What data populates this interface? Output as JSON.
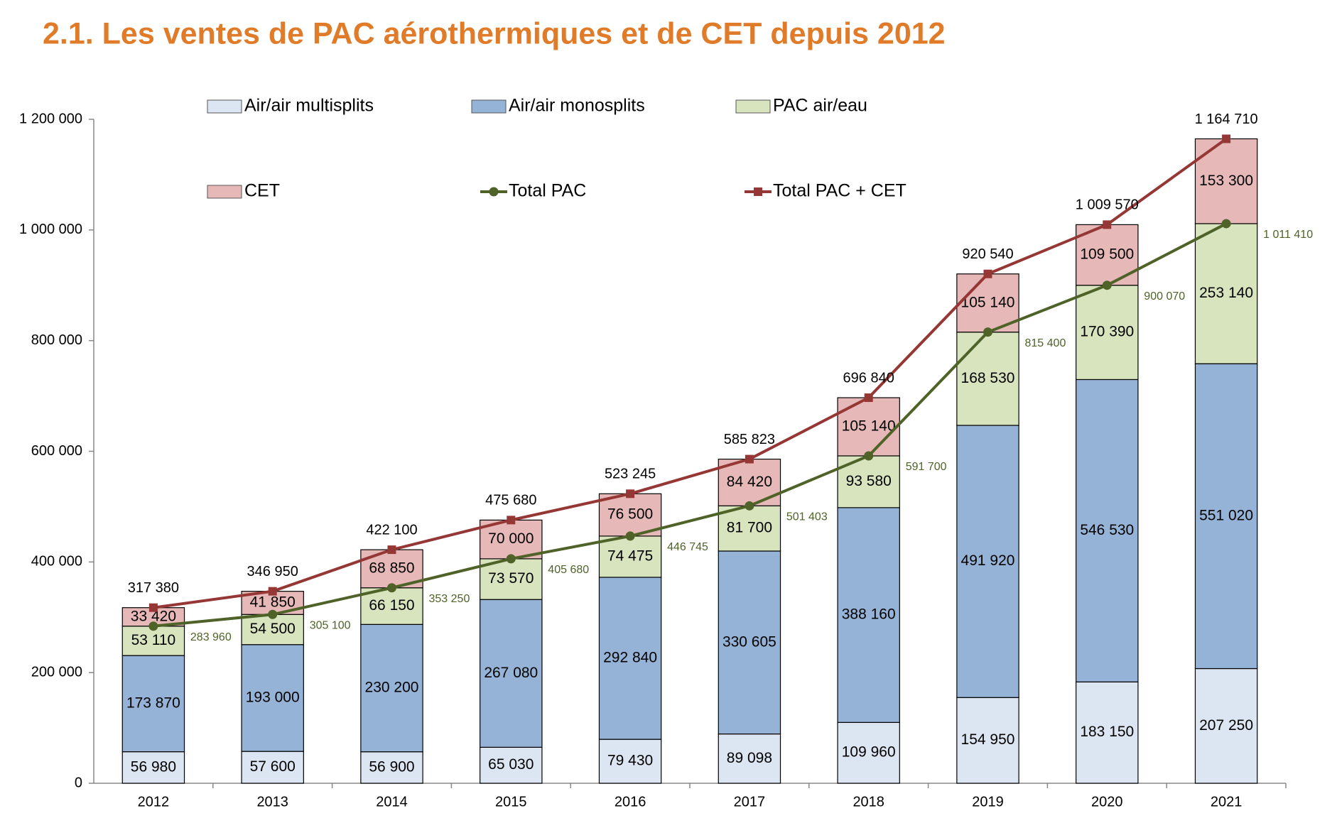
{
  "chart_data": {
    "type": "bar",
    "stacked": true,
    "title": "2.1. Les ventes de PAC aérothermiques et de CET depuis 2012",
    "categories": [
      "2012",
      "2013",
      "2014",
      "2015",
      "2016",
      "2017",
      "2018",
      "2019",
      "2020",
      "2021"
    ],
    "ylim": [
      0,
      1200000
    ],
    "yticks": [
      0,
      {
        "value": 200000,
        "label": "200 000"
      },
      {
        "value": 400000,
        "label": "400 000"
      },
      {
        "value": 600000,
        "label": "600 000"
      },
      {
        "value": 800000,
        "label": "800 000"
      },
      {
        "value": 1000000,
        "label": "1 000 000"
      },
      {
        "value": 1200000,
        "label": "1 200 000"
      }
    ],
    "grid": false,
    "series": [
      {
        "name": "Air/air multisplits",
        "type": "bar",
        "color": "#dce6f2",
        "values": [
          56980,
          57600,
          56900,
          65030,
          79430,
          89098,
          109960,
          154950,
          183150,
          207250
        ],
        "value_labels": [
          "56 980",
          "57 600",
          "56 900",
          "65 030",
          "79 430",
          "89 098",
          "109 960",
          "154 950",
          "183 150",
          "207 250"
        ]
      },
      {
        "name": "Air/air monosplits",
        "type": "bar",
        "color": "#95b3d7",
        "values": [
          173870,
          193000,
          230200,
          267080,
          292840,
          330605,
          388160,
          491920,
          546530,
          551020
        ],
        "value_labels": [
          "173 870",
          "193 000",
          "230 200",
          "267 080",
          "292 840",
          "330 605",
          "388 160",
          "491 920",
          "546 530",
          "551 020"
        ]
      },
      {
        "name": "PAC air/eau",
        "type": "bar",
        "color": "#d7e4bd",
        "values": [
          53110,
          54500,
          66150,
          73570,
          74475,
          81700,
          93580,
          168530,
          170390,
          253140
        ],
        "value_labels": [
          "53 110",
          "54 500",
          "66 150",
          "73 570",
          "74 475",
          "81 700",
          "93 580",
          "168 530",
          "170 390",
          "253 140"
        ]
      },
      {
        "name": "CET",
        "type": "bar",
        "color": "#e6b9b8",
        "values": [
          33420,
          41850,
          68850,
          70000,
          76500,
          84420,
          105140,
          105140,
          109500,
          153300
        ],
        "value_labels": [
          "33 420",
          "41 850",
          "68 850",
          "70 000",
          "76 500",
          "84 420",
          "105 140",
          "105 140",
          "109 500",
          "153 300"
        ]
      },
      {
        "name": "Total PAC",
        "type": "line",
        "marker": "circle",
        "color": "#4f6228",
        "values": [
          283960,
          305100,
          353250,
          405680,
          446745,
          501403,
          591700,
          815400,
          900070,
          1011410
        ],
        "value_labels": [
          "283 960",
          "305 100",
          "353 250",
          "405 680",
          "446 745",
          "501 403",
          "591 700",
          "815 400",
          "900 070",
          "1 011 410"
        ]
      },
      {
        "name": "Total PAC + CET",
        "type": "line",
        "marker": "square",
        "color": "#953735",
        "values": [
          317380,
          346950,
          422100,
          475680,
          523245,
          585823,
          696840,
          920540,
          1009570,
          1164710
        ],
        "value_labels": [
          "317 380",
          "346 950",
          "422 100",
          "475 680",
          "523 245",
          "585 823",
          "696 840",
          "920 540",
          "1 009 570",
          "1 164 710"
        ]
      }
    ]
  }
}
